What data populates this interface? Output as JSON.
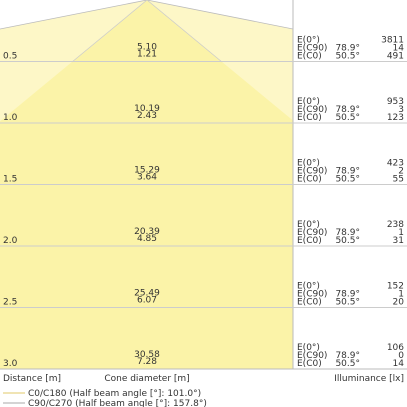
{
  "labels": {
    "e0": "E(0°)",
    "ec90": "E(C90)",
    "ec0": "E(C0)",
    "c90_angle": "78.9°",
    "c0_angle": "50.5°"
  },
  "rows": [
    {
      "distance": "0.5",
      "diameter_c90": "5.10",
      "diameter_c0": "1.21",
      "e0": "3811",
      "ec90": "14",
      "ec0": "491"
    },
    {
      "distance": "1.0",
      "diameter_c90": "10.19",
      "diameter_c0": "2.43",
      "e0": "953",
      "ec90": "3",
      "ec0": "123"
    },
    {
      "distance": "1.5",
      "diameter_c90": "15.29",
      "diameter_c0": "3.64",
      "e0": "423",
      "ec90": "2",
      "ec0": "55"
    },
    {
      "distance": "2.0",
      "diameter_c90": "20.39",
      "diameter_c0": "4.85",
      "e0": "238",
      "ec90": "1",
      "ec0": "31"
    },
    {
      "distance": "2.5",
      "diameter_c90": "25.49",
      "diameter_c0": "6.07",
      "e0": "152",
      "ec90": "1",
      "ec0": "20"
    },
    {
      "distance": "3.0",
      "diameter_c90": "30.58",
      "diameter_c0": "7.28",
      "e0": "106",
      "ec90": "0",
      "ec0": "14"
    }
  ],
  "axis_labels": {
    "distance": "Distance [m]",
    "diameter": "Cone diameter [m]",
    "illuminance": "Illuminance [lx]"
  },
  "legend": [
    "C0/C180 (Half beam angle [°]: 101.0°)",
    "C90/C270 (Half beam angle [°]: 157.8°)"
  ]
}
